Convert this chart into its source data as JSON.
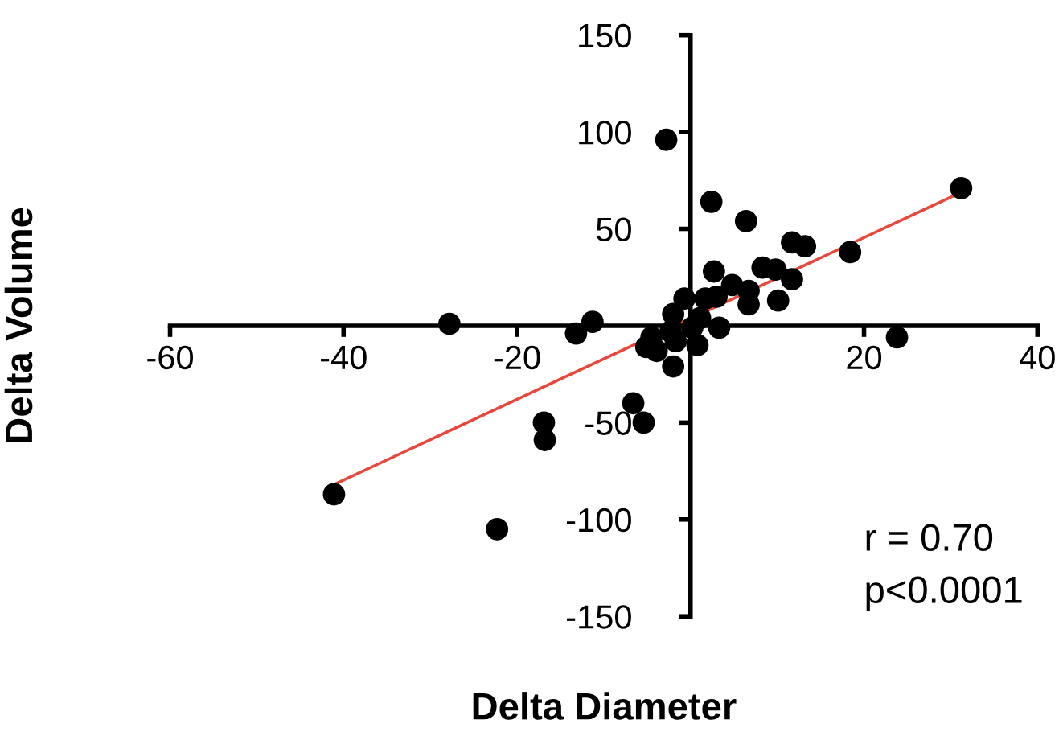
{
  "chart_data": {
    "type": "scatter",
    "xlabel": "Delta Diameter",
    "ylabel": "Delta Volume",
    "xlim": [
      -60,
      40
    ],
    "ylim": [
      -150,
      150
    ],
    "xticks": [
      -60,
      -40,
      -20,
      20,
      40
    ],
    "yticks": [
      -150,
      -100,
      -50,
      50,
      100,
      150
    ],
    "grid": false,
    "legend": false,
    "series": [
      {
        "color": "#000000",
        "marker": "circle",
        "x": [
          -41.1,
          -22.3,
          -27.8,
          -13.2,
          -11.3,
          -16.9,
          -16.8,
          -6.6,
          -5.4,
          -2.8,
          2.4,
          6.4,
          31.2,
          18.4,
          23.8,
          11.7,
          13.2,
          8.3,
          9.8,
          11.7,
          10.1,
          6.7,
          6.7,
          4.8,
          2.7,
          3.0,
          1.7,
          3.3,
          0.8,
          -0.7,
          -2.0,
          -2.3,
          -4.5,
          -5.1,
          -3.9,
          -2.0,
          -1.7,
          0.2,
          1.1
        ],
        "values": [
          -87,
          -105,
          1,
          -4,
          2,
          -50,
          -59,
          -40,
          -50,
          96,
          64,
          54,
          71,
          38,
          -6,
          43,
          41,
          30,
          29,
          24,
          13,
          11,
          18,
          21,
          28,
          15,
          14,
          -1,
          -10,
          14,
          6,
          -3,
          -6,
          -11,
          -13,
          -21,
          -8,
          -1,
          4
        ]
      },
      {
        "type": "line",
        "color": "#e8483c",
        "x": [
          -41.1,
          30.3
        ],
        "values": [
          -82,
          67
        ]
      }
    ],
    "annotations": [
      "r = 0.70",
      "p<0.0001"
    ]
  }
}
